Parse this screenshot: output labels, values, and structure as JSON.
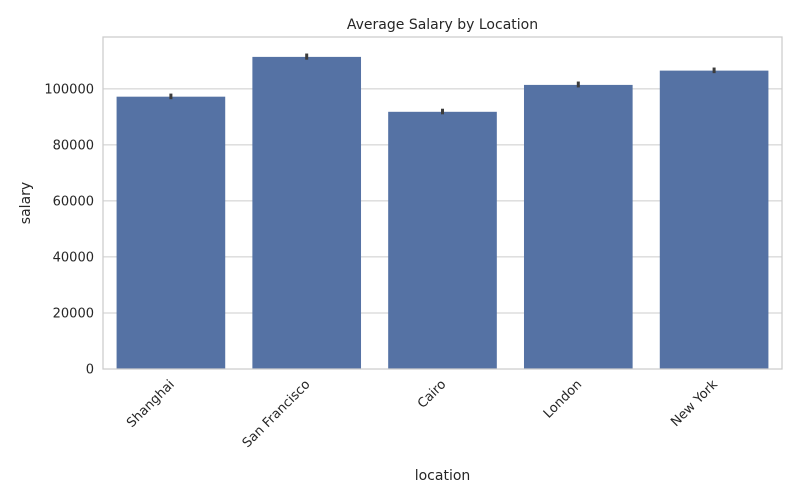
{
  "chart_data": {
    "type": "bar",
    "title": "Average Salary by Location",
    "xlabel": "location",
    "ylabel": "salary",
    "categories": [
      "Shanghai",
      "San Francisco",
      "Cairo",
      "London",
      "New York"
    ],
    "values": [
      97200,
      111400,
      91800,
      101400,
      106500
    ],
    "error_bars": [
      {
        "low": 96300,
        "high": 98300
      },
      {
        "low": 110400,
        "high": 112600
      },
      {
        "low": 90900,
        "high": 92900
      },
      {
        "low": 100500,
        "high": 102600
      },
      {
        "low": 105600,
        "high": 107600
      }
    ],
    "ylim": [
      0,
      118500
    ],
    "yticks": [
      0,
      20000,
      40000,
      60000,
      80000,
      100000
    ],
    "ytick_labels": [
      "0",
      "20000",
      "40000",
      "60000",
      "80000",
      "100000"
    ],
    "grid": true,
    "colors": {
      "bar": "#5572a4",
      "error_bar": "#3c3c3c",
      "grid": "#cccccc"
    }
  }
}
